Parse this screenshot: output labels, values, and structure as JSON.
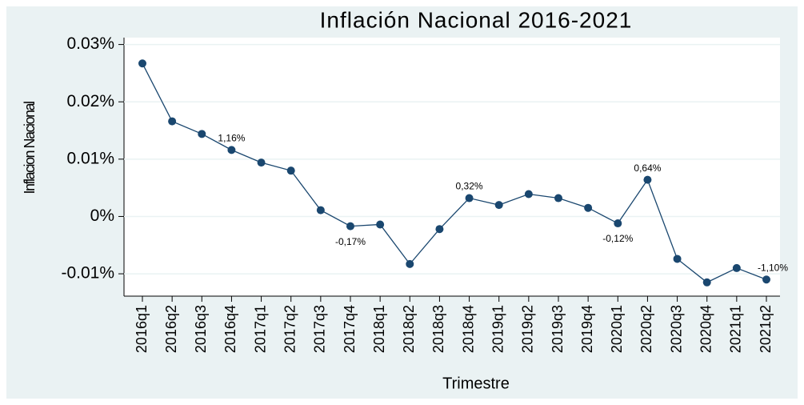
{
  "chart_data": {
    "type": "line",
    "title": "Inflación Nacional 2016-2021",
    "x_label": "Trimestre",
    "y_label": "Inflacion Nacional",
    "categories": [
      "2016q1",
      "2016q2",
      "2016q3",
      "2016q4",
      "2017q1",
      "2017q2",
      "2017q3",
      "2017q4",
      "2018q1",
      "2018q2",
      "2018q3",
      "2018q4",
      "2019q1",
      "2019q2",
      "2019q3",
      "2019q4",
      "2020q1",
      "2020q2",
      "2020q3",
      "2020q4",
      "2021q1",
      "2021q2"
    ],
    "series": [
      {
        "name": "Inflacion Nacional",
        "color": "#1a476f",
        "values": [
          0.0267,
          0.0166,
          0.0144,
          0.0116,
          0.0094,
          0.008,
          0.0011,
          -0.0017,
          -0.0014,
          -0.0083,
          -0.0022,
          0.0032,
          0.002,
          0.0039,
          0.0032,
          0.0015,
          -0.0012,
          0.0064,
          -0.0074,
          -0.0115,
          -0.009,
          -0.011
        ],
        "value_labels": [
          null,
          null,
          null,
          "1,16%",
          null,
          null,
          null,
          "-0,17%",
          null,
          null,
          null,
          "0,32%",
          null,
          null,
          null,
          null,
          "-0,12%",
          "0,64%",
          null,
          null,
          null,
          "-1,10%"
        ]
      }
    ],
    "ylim": [
      -0.0139,
      0.0312
    ],
    "yticks": [
      {
        "value": -0.01,
        "label": "-0.01%"
      },
      {
        "value": 0,
        "label": "0%"
      },
      {
        "value": 0.01,
        "label": "0.01%"
      },
      {
        "value": 0.02,
        "label": "0.02%"
      },
      {
        "value": 0.03,
        "label": "0.03%"
      }
    ],
    "grid": true
  }
}
